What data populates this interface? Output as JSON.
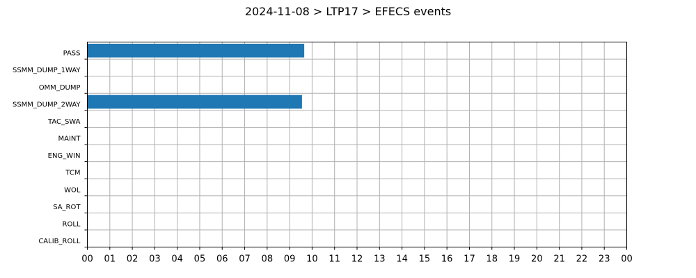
{
  "chart_data": {
    "type": "bar",
    "orientation": "horizontal",
    "title": "2024-11-08 > LTP17 > EFECS events",
    "categories": [
      "PASS",
      "SSMM_DUMP_1WAY",
      "OMM_DUMP",
      "SSMM_DUMP_2WAY",
      "TAC_SWA",
      "MAINT",
      "ENG_WIN",
      "TCM",
      "WOL",
      "SA_ROT",
      "ROLL",
      "CALIB_ROLL"
    ],
    "series": [
      {
        "values": [
          [
            [
              0,
              9.65
            ]
          ],
          [],
          [],
          [
            [
              0,
              9.55
            ]
          ],
          [],
          [],
          [],
          [],
          [],
          [],
          [],
          []
        ]
      }
    ],
    "x_tick_labels": [
      "00",
      "01",
      "02",
      "03",
      "04",
      "05",
      "06",
      "07",
      "08",
      "09",
      "10",
      "11",
      "12",
      "13",
      "14",
      "15",
      "16",
      "17",
      "18",
      "19",
      "20",
      "21",
      "22",
      "23",
      "00"
    ],
    "xlim": [
      0,
      24
    ],
    "xlabel": "",
    "ylabel": "",
    "grid": true,
    "bar_color": "#1f77b4"
  }
}
